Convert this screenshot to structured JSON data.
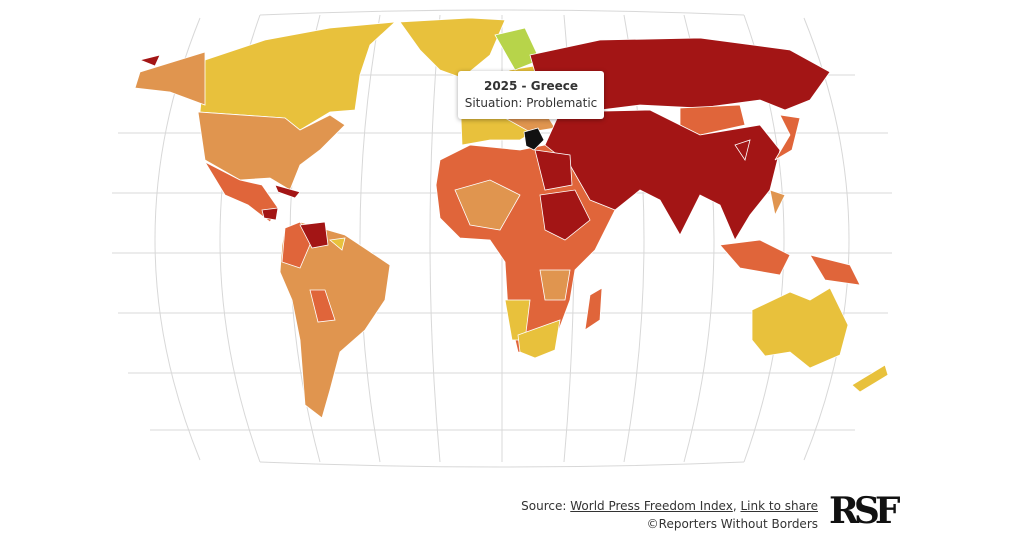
{
  "tooltip": {
    "title": "2025 - Greece",
    "situation": "Situation: Problematic"
  },
  "source": {
    "prefix": "Source:",
    "link1": "World Press Freedom Index",
    "separator": ",",
    "link2": "Link to share",
    "copyright": "©Reporters Without Borders"
  },
  "logo": "RSF"
}
